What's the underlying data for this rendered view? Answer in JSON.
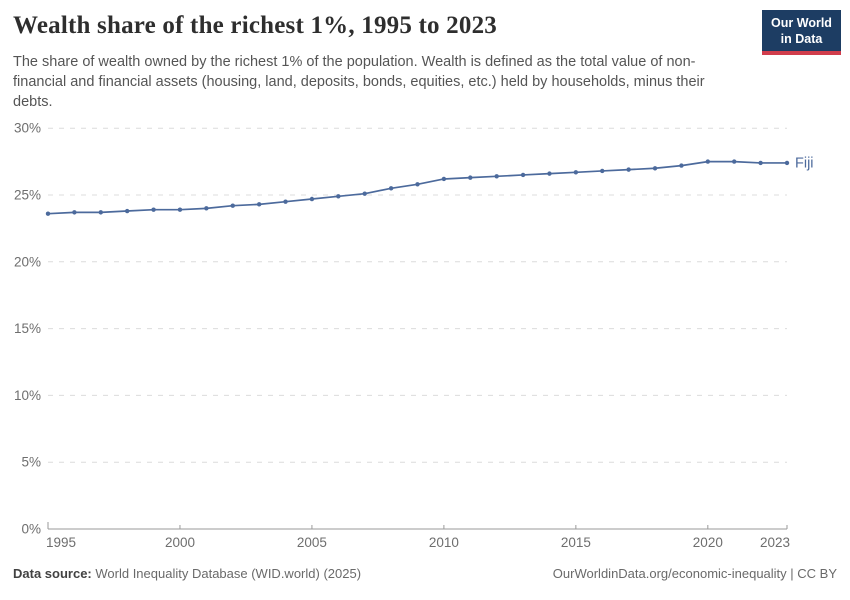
{
  "header": {
    "title": "Wealth share of the richest 1%, 1995 to 2023",
    "subtitle": "The share of wealth owned by the richest 1% of the population. Wealth is defined as the total value of non-financial and financial assets (housing, land, deposits, bonds, equities, etc.) held by households, minus their debts."
  },
  "logo": {
    "line1": "Our World",
    "line2": "in Data",
    "bg_color": "#1d3d63",
    "accent_color": "#d13d4c"
  },
  "chart_data": {
    "type": "line",
    "title": "Wealth share of the richest 1%, 1995 to 2023",
    "x": [
      1995,
      1996,
      1997,
      1998,
      1999,
      2000,
      2001,
      2002,
      2003,
      2004,
      2005,
      2006,
      2007,
      2008,
      2009,
      2010,
      2011,
      2012,
      2013,
      2014,
      2015,
      2016,
      2017,
      2018,
      2019,
      2020,
      2021,
      2022,
      2023
    ],
    "series": [
      {
        "name": "Fiji",
        "color": "#4c6a9c",
        "values": [
          23.6,
          23.7,
          23.7,
          23.8,
          23.9,
          23.9,
          24.0,
          24.2,
          24.3,
          24.5,
          24.7,
          24.9,
          25.1,
          25.5,
          25.8,
          26.2,
          26.3,
          26.4,
          26.5,
          26.6,
          26.7,
          26.8,
          26.9,
          27.0,
          27.2,
          27.5,
          27.5,
          27.4,
          27.4
        ]
      }
    ],
    "xlabel": "",
    "ylabel": "",
    "ylim": [
      0,
      30
    ],
    "yticks": [
      0,
      5,
      10,
      15,
      20,
      25,
      30
    ],
    "ytick_suffix": "%",
    "xticks": [
      1995,
      2000,
      2005,
      2010,
      2015,
      2020,
      2023
    ],
    "grid": "horizontal-dashed",
    "legend_position": "end-of-line-label",
    "colors": {
      "grid": "#dcdcdc",
      "axis": "#9a9a9a",
      "tick_text": "#6e6e6e"
    }
  },
  "footer": {
    "datasource_label": "Data source:",
    "datasource_value": "World Inequality Database (WID.world) (2025)",
    "attribution": "OurWorldinData.org/economic-inequality | CC BY"
  }
}
